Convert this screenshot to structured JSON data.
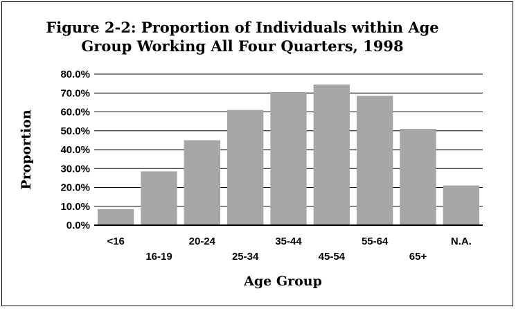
{
  "chart_data": {
    "type": "bar",
    "title_lines": [
      "Figure 2-2:  Proportion of Individuals within Age",
      "Group Working All Four Quarters, 1998"
    ],
    "xlabel": "Age Group",
    "ylabel": "Proportion",
    "categories": [
      "<16",
      "16-19",
      "20-24",
      "25-34",
      "35-44",
      "45-54",
      "55-64",
      "65+",
      "N.A."
    ],
    "values": [
      8.5,
      28.5,
      45.0,
      61.0,
      70.5,
      74.5,
      68.5,
      51.0,
      21.0
    ],
    "ylim": [
      0,
      80
    ],
    "yticks": [
      "0.0%",
      "10.0%",
      "20.0%",
      "30.0%",
      "40.0%",
      "50.0%",
      "60.0%",
      "70.0%",
      "80.0%"
    ],
    "grid": true,
    "legend": "none",
    "colors": {
      "bar": "#a6a6a6",
      "grid": "#000000",
      "background": "#ffffff"
    }
  }
}
